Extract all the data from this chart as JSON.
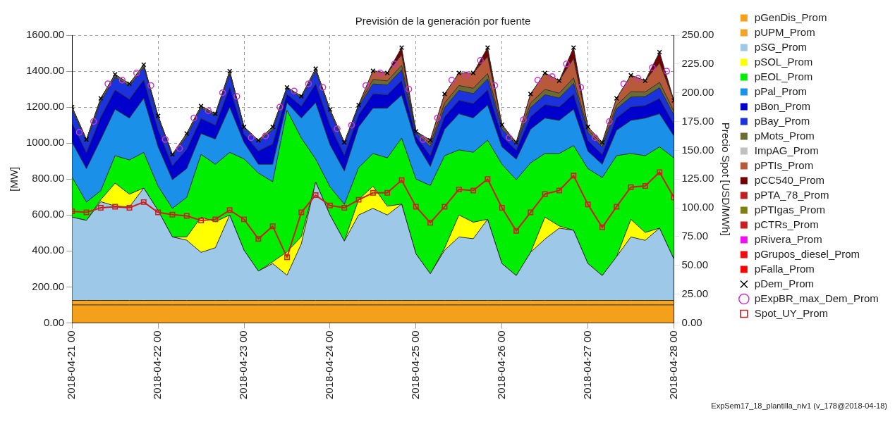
{
  "chart_data": {
    "type": "area",
    "title": "Previsión de la generación por fuente",
    "ylabel": "[MW]",
    "y2label": "Precio Spot [USD/MWh]",
    "annotations": [
      "ExpSem17_18_plantilla_niv1 (v_178@2018-04-18)"
    ],
    "x": [
      "2018-04-21T00:00",
      "2018-04-21T04:00",
      "2018-04-21T08:00",
      "2018-04-21T12:00",
      "2018-04-21T16:00",
      "2018-04-21T20:00",
      "2018-04-22T00:00",
      "2018-04-22T04:00",
      "2018-04-22T08:00",
      "2018-04-22T12:00",
      "2018-04-22T16:00",
      "2018-04-22T20:00",
      "2018-04-23T00:00",
      "2018-04-23T04:00",
      "2018-04-23T08:00",
      "2018-04-23T12:00",
      "2018-04-23T16:00",
      "2018-04-23T20:00",
      "2018-04-24T00:00",
      "2018-04-24T04:00",
      "2018-04-24T08:00",
      "2018-04-24T12:00",
      "2018-04-24T16:00",
      "2018-04-24T20:00",
      "2018-04-25T00:00",
      "2018-04-25T04:00",
      "2018-04-25T08:00",
      "2018-04-25T12:00",
      "2018-04-25T16:00",
      "2018-04-25T20:00",
      "2018-04-26T00:00",
      "2018-04-26T04:00",
      "2018-04-26T08:00",
      "2018-04-26T12:00",
      "2018-04-26T16:00",
      "2018-04-26T20:00",
      "2018-04-27T00:00",
      "2018-04-27T04:00",
      "2018-04-27T08:00",
      "2018-04-27T12:00",
      "2018-04-27T16:00",
      "2018-04-27T20:00",
      "2018-04-28T00:00"
    ],
    "xlim": [
      "2018-04-21T00:00",
      "2018-04-28T00:00"
    ],
    "xticks": [
      {
        "value": "2018-04-21T00:00",
        "label": "2018-04-21 00"
      },
      {
        "value": "2018-04-22T00:00",
        "label": "2018-04-22 00"
      },
      {
        "value": "2018-04-23T00:00",
        "label": "2018-04-23 00"
      },
      {
        "value": "2018-04-24T00:00",
        "label": "2018-04-24 00"
      },
      {
        "value": "2018-04-25T00:00",
        "label": "2018-04-25 00"
      },
      {
        "value": "2018-04-26T00:00",
        "label": "2018-04-26 00"
      },
      {
        "value": "2018-04-27T00:00",
        "label": "2018-04-27 00"
      },
      {
        "value": "2018-04-28T00:00",
        "label": "2018-04-28 00"
      }
    ],
    "ylim": [
      0,
      1600
    ],
    "yticks": [
      {
        "value": 0,
        "label": "0.00"
      },
      {
        "value": 200,
        "label": "200.00"
      },
      {
        "value": 400,
        "label": "400.00"
      },
      {
        "value": 600,
        "label": "600.00"
      },
      {
        "value": 800,
        "label": "800.00"
      },
      {
        "value": 1000,
        "label": "1000.00"
      },
      {
        "value": 1200,
        "label": "1200.00"
      },
      {
        "value": 1400,
        "label": "1400.00"
      },
      {
        "value": 1600,
        "label": "1600.00"
      }
    ],
    "y2lim": [
      0,
      250
    ],
    "y2ticks": [
      {
        "value": 0,
        "label": "0.00"
      },
      {
        "value": 25,
        "label": "25.00"
      },
      {
        "value": 50,
        "label": "50.00"
      },
      {
        "value": 75,
        "label": "75.00"
      },
      {
        "value": 100,
        "label": "100.00"
      },
      {
        "value": 125,
        "label": "125.00"
      },
      {
        "value": 150,
        "label": "150.00"
      },
      {
        "value": 175,
        "label": "175.00"
      },
      {
        "value": 200,
        "label": "200.00"
      },
      {
        "value": 225,
        "label": "225.00"
      },
      {
        "value": 250,
        "label": "250.00"
      }
    ],
    "stacked": true,
    "grid": true,
    "legend": "right",
    "series": [
      {
        "name": "pGenDis_Prom",
        "color": "#f5a01a",
        "values": [
          100,
          100,
          100,
          100,
          100,
          100,
          100,
          100,
          100,
          100,
          100,
          100,
          100,
          100,
          100,
          100,
          100,
          100,
          100,
          100,
          100,
          100,
          100,
          100,
          100,
          100,
          100,
          100,
          100,
          100,
          100,
          100,
          100,
          100,
          100,
          100,
          100,
          100,
          100,
          100,
          100,
          100,
          100
        ]
      },
      {
        "name": "pUPM_Prom",
        "color": "#f0a428",
        "values": [
          25,
          25,
          25,
          25,
          25,
          25,
          25,
          25,
          25,
          25,
          25,
          25,
          25,
          25,
          25,
          25,
          25,
          25,
          25,
          25,
          25,
          25,
          25,
          25,
          25,
          25,
          25,
          25,
          25,
          25,
          25,
          25,
          25,
          25,
          25,
          25,
          25,
          25,
          25,
          25,
          25,
          25,
          25
        ]
      },
      {
        "name": "pSG_Prom",
        "color": "#9ec8e8",
        "values": [
          463,
          445,
          549,
          525,
          520,
          625,
          500,
          353,
          335,
          267,
          293,
          475,
          279,
          163,
          205,
          140,
          315,
          658,
          475,
          330,
          475,
          512,
          475,
          536,
          259,
          148,
          279,
          353,
          343,
          451,
          205,
          138,
          267,
          341,
          402,
          390,
          205,
          138,
          243,
          353,
          334,
          402,
          230
        ]
      },
      {
        "name": "pSOL_Prom",
        "color": "#ffff00",
        "values": [
          0,
          0,
          11,
          127,
          71,
          0,
          0,
          0,
          18,
          196,
          145,
          0,
          0,
          0,
          10,
          130,
          40,
          0,
          0,
          0,
          86,
          123,
          49,
          0,
          0,
          0,
          12,
          122,
          92,
          0,
          0,
          0,
          0,
          122,
          12,
          0,
          0,
          0,
          0,
          98,
          44,
          0,
          0
        ]
      },
      {
        "name": "pEOL_Prom",
        "color": "#00ee00",
        "values": [
          222,
          102,
          50,
          153,
          190,
          198,
          135,
          159,
          220,
          349,
          319,
          348,
          508,
          545,
          445,
          787,
          548,
          128,
          157,
          204,
          178,
          182,
          269,
          367,
          416,
          491,
          514,
          362,
          389,
          440,
          552,
          533,
          498,
          354,
          403,
          471,
          528,
          545,
          562,
          366,
          427,
          452,
          563
        ]
      },
      {
        "name": "pPal_Prom",
        "color": "#1a90e8",
        "values": [
          194,
          186,
          285,
          258,
          233,
          301,
          220,
          159,
          160,
          116,
          140,
          252,
          92,
          49,
          97,
          43,
          111,
          314,
          234,
          185,
          226,
          252,
          276,
          239,
          202,
          106,
          147,
          201,
          191,
          196,
          97,
          114,
          187,
          197,
          184,
          202,
          97,
          74,
          141,
          184,
          209,
          184,
          122
        ]
      },
      {
        "name": "pBon_Prom",
        "color": "#0000cc",
        "values": [
          108,
          89,
          126,
          107,
          105,
          103,
          94,
          78,
          107,
          84,
          78,
          110,
          47,
          74,
          114,
          47,
          67,
          104,
          108,
          88,
          67,
          80,
          75,
          80,
          35,
          60,
          70,
          75,
          80,
          85,
          60,
          50,
          70,
          75,
          75,
          85,
          60,
          55,
          70,
          75,
          70,
          85,
          65
        ]
      },
      {
        "name": "pBay_Prom",
        "color": "#1a33dd",
        "values": [
          74,
          62,
          87,
          74,
          73,
          71,
          65,
          54,
          74,
          58,
          54,
          76,
          33,
          51,
          79,
          32,
          46,
          72,
          74,
          61,
          46,
          55,
          55,
          60,
          20,
          50,
          50,
          55,
          55,
          60,
          40,
          30,
          50,
          55,
          50,
          60,
          45,
          40,
          50,
          55,
          50,
          60,
          50
        ]
      },
      {
        "name": "pMots_Prom",
        "color": "#6b6b33",
        "values": [
          14,
          11,
          16,
          13,
          13,
          13,
          12,
          9,
          14,
          11,
          9,
          14,
          6,
          9,
          15,
          6,
          9,
          13,
          14,
          11,
          9,
          25,
          22,
          25,
          8,
          16,
          26,
          27,
          30,
          30,
          13,
          10,
          26,
          30,
          26,
          30,
          15,
          15,
          20,
          30,
          25,
          30,
          22
        ]
      },
      {
        "name": "ImpAG_Prom",
        "color": "#c0c0c0",
        "values": [
          null,
          null,
          null,
          null,
          null,
          null,
          null,
          null,
          null,
          null,
          null,
          null,
          null,
          null,
          null,
          null,
          null,
          null,
          null,
          null,
          null,
          null,
          null,
          null,
          null,
          null,
          null,
          null,
          null,
          null,
          null,
          null,
          null,
          null,
          null,
          null,
          null,
          null,
          null,
          null,
          null,
          null,
          null
        ]
      },
      {
        "name": "pPTIs_Prom",
        "color": "#b85a3a",
        "values": [
          0,
          0,
          0,
          0,
          0,
          0,
          0,
          0,
          0,
          0,
          0,
          0,
          0,
          0,
          0,
          0,
          0,
          0,
          0,
          0,
          0,
          48,
          44,
          59,
          0,
          20,
          50,
          70,
          85,
          94,
          10,
          4,
          50,
          91,
          70,
          108,
          15,
          12,
          38,
          91,
          63,
          108,
          60
        ]
      },
      {
        "name": "pCC540_Prom",
        "color": "#700000",
        "values": [
          0,
          0,
          0,
          0,
          0,
          0,
          0,
          0,
          0,
          0,
          0,
          0,
          0,
          0,
          0,
          0,
          0,
          0,
          0,
          0,
          0,
          0,
          0,
          40,
          0,
          0,
          0,
          0,
          0,
          50,
          0,
          0,
          0,
          0,
          0,
          60,
          0,
          0,
          0,
          0,
          0,
          60,
          0
        ]
      },
      {
        "name": "pPTA_78_Prom",
        "color": "#c02020",
        "values": [
          null,
          null,
          null,
          null,
          null,
          null,
          null,
          null,
          null,
          null,
          null,
          null,
          null,
          null,
          null,
          null,
          null,
          null,
          null,
          null,
          null,
          null,
          null,
          null,
          null,
          null,
          null,
          null,
          null,
          null,
          null,
          null,
          null,
          null,
          null,
          null,
          null,
          null,
          null,
          null,
          null,
          null,
          null
        ]
      },
      {
        "name": "pPTIgas_Prom",
        "color": "#808010",
        "values": [
          null,
          null,
          null,
          null,
          null,
          null,
          null,
          null,
          null,
          null,
          null,
          null,
          null,
          null,
          null,
          null,
          null,
          null,
          null,
          null,
          null,
          null,
          null,
          null,
          null,
          null,
          null,
          null,
          null,
          null,
          null,
          null,
          null,
          null,
          null,
          null,
          null,
          null,
          null,
          null,
          null,
          null,
          null
        ]
      },
      {
        "name": "pCTRs_Prom",
        "color": "#c82020",
        "values": [
          null,
          null,
          null,
          null,
          null,
          null,
          null,
          null,
          null,
          null,
          null,
          null,
          null,
          null,
          null,
          null,
          null,
          null,
          null,
          null,
          null,
          null,
          null,
          null,
          null,
          null,
          null,
          null,
          null,
          null,
          null,
          null,
          null,
          null,
          null,
          null,
          null,
          null,
          null,
          null,
          null,
          null,
          null
        ]
      },
      {
        "name": "pRivera_Prom",
        "color": "#ee10ee",
        "values": [
          null,
          null,
          null,
          null,
          null,
          null,
          null,
          null,
          null,
          null,
          null,
          null,
          null,
          null,
          null,
          null,
          null,
          null,
          null,
          null,
          null,
          null,
          null,
          null,
          null,
          null,
          null,
          null,
          null,
          null,
          null,
          null,
          null,
          null,
          null,
          null,
          null,
          null,
          null,
          null,
          null,
          null,
          null
        ]
      },
      {
        "name": "pGrupos_diesel_Prom",
        "color": "#ee1010",
        "values": [
          null,
          null,
          null,
          null,
          null,
          null,
          null,
          null,
          null,
          null,
          null,
          null,
          null,
          null,
          null,
          null,
          null,
          null,
          null,
          null,
          null,
          null,
          null,
          null,
          null,
          null,
          null,
          null,
          null,
          null,
          null,
          null,
          null,
          null,
          null,
          null,
          null,
          null,
          null,
          null,
          null,
          null,
          null
        ]
      },
      {
        "name": "pFalla_Prom",
        "color": "#ff0000",
        "values": [
          null,
          null,
          null,
          null,
          null,
          null,
          null,
          null,
          null,
          null,
          null,
          null,
          null,
          null,
          null,
          null,
          null,
          null,
          null,
          null,
          null,
          null,
          null,
          null,
          null,
          null,
          null,
          null,
          null,
          null,
          null,
          null,
          null,
          null,
          null,
          null,
          null,
          null,
          null,
          null,
          null,
          null,
          null
        ]
      },
      {
        "name": "pDem_Prom",
        "type": "scatter",
        "marker": "cross",
        "color": "#000000",
        "values": [
          1200,
          1020,
          1249,
          1382,
          1330,
          1436,
          1151,
          937,
          1053,
          1206,
          1163,
          1400,
          1090,
          1016,
          1090,
          1310,
          1261,
          1414,
          1187,
          1004,
          1212,
          1402,
          1390,
          1531,
          1065,
          1016,
          1273,
          1390,
          1390,
          1531,
          1102,
          1004,
          1273,
          1390,
          1347,
          1531,
          1090,
          1004,
          1249,
          1377,
          1347,
          1506,
          1237
        ]
      },
      {
        "name": "pExpBR_max_Dem_Prom",
        "type": "scatter",
        "marker": "circle",
        "color": "#cc33cc",
        "x": [
          "2018-04-21T02:00",
          "2018-04-21T06:00",
          "2018-04-21T10:00",
          "2018-04-21T14:00",
          "2018-04-21T18:00",
          "2018-04-21T22:00",
          "2018-04-22T02:00",
          "2018-04-22T06:00",
          "2018-04-22T10:00",
          "2018-04-22T14:00",
          "2018-04-22T18:00",
          "2018-04-22T22:00",
          "2018-04-23T02:00",
          "2018-04-23T06:00",
          "2018-04-23T10:00",
          "2018-04-23T14:00",
          "2018-04-23T18:00",
          "2018-04-23T22:00",
          "2018-04-24T02:00",
          "2018-04-24T06:00",
          "2018-04-24T10:00",
          "2018-04-24T14:00",
          "2018-04-24T18:00",
          "2018-04-24T22:00",
          "2018-04-25T02:00",
          "2018-04-25T06:00",
          "2018-04-25T10:00",
          "2018-04-25T14:00",
          "2018-04-25T18:00",
          "2018-04-25T22:00",
          "2018-04-26T02:00",
          "2018-04-26T06:00",
          "2018-04-26T10:00",
          "2018-04-26T14:00",
          "2018-04-26T18:00",
          "2018-04-26T22:00",
          "2018-04-27T02:00",
          "2018-04-27T06:00",
          "2018-04-27T10:00",
          "2018-04-27T14:00",
          "2018-04-27T18:00",
          "2018-04-27T22:00"
        ],
        "values": [
          1060,
          1120,
          1330,
          1350,
          1390,
          1320,
          1020,
          970,
          1140,
          1180,
          1280,
          1260,
          1030,
          1040,
          1200,
          1290,
          1330,
          1310,
          1080,
          1100,
          1320,
          1390,
          1440,
          1300,
          1020,
          1140,
          1350,
          1380,
          1460,
          1320,
          1030,
          1130,
          1350,
          1370,
          1440,
          1310,
          1030,
          1120,
          1330,
          1360,
          1420,
          1400
        ]
      },
      {
        "name": "Spot_UY_Prom",
        "type": "line",
        "marker": "square",
        "axis": "y2",
        "color": "#cc2020",
        "values": [
          97,
          96,
          100,
          101,
          100,
          105,
          96,
          94,
          93,
          89,
          90,
          98,
          90,
          73,
          84,
          57,
          96,
          111,
          102,
          100,
          107,
          113,
          113,
          124,
          101,
          87,
          101,
          116,
          115,
          125,
          100,
          80,
          96,
          112,
          115,
          128,
          103,
          83,
          101,
          118,
          119,
          131,
          109
        ]
      }
    ]
  }
}
